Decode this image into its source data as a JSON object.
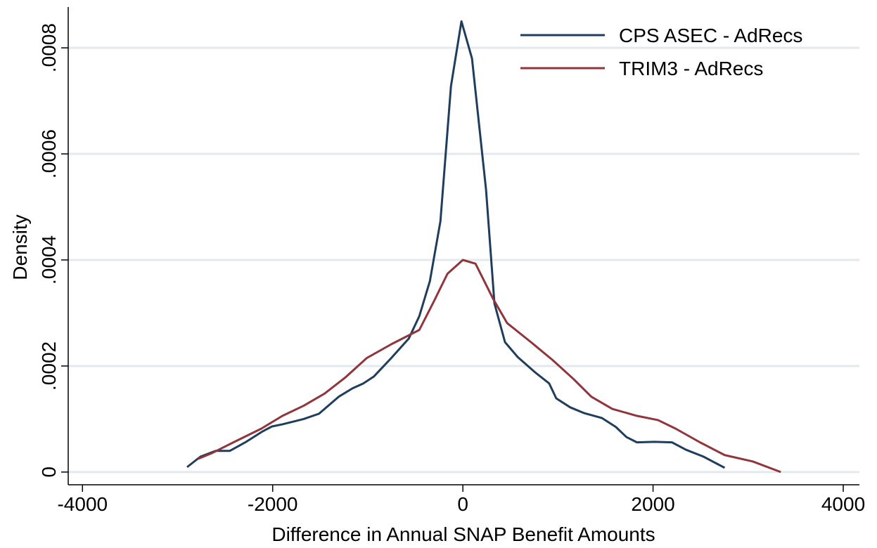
{
  "chart_data": {
    "type": "line",
    "x_label": "Difference in Annual SNAP Benefit Amounts",
    "y_label": "Density",
    "xlim": [
      -4150,
      4170
    ],
    "ylim": [
      -2.4e-05,
      0.000877
    ],
    "xticks": [
      -4000,
      -2000,
      0,
      2000,
      4000
    ],
    "yticks": [
      0,
      {
        "value": 0.0002,
        "label": ".0002"
      },
      {
        "value": 0.0004,
        "label": ".0004"
      },
      {
        "value": 0.0006,
        "label": ".0006"
      },
      {
        "value": 0.0008,
        "label": ".0008"
      }
    ],
    "grid": true,
    "legend": "top right",
    "series": [
      {
        "name": "CPS ASEC - AdRecs",
        "color": "#1f3d5c",
        "x": [
          -2900,
          -2760,
          -2598,
          -2450,
          -2288,
          -2103,
          -2007,
          -1897,
          -1675,
          -1513,
          -1306,
          -1159,
          -1048,
          -937,
          -753,
          -568,
          -458,
          -347,
          -236,
          -125,
          -15,
          96,
          244,
          332,
          443,
          576,
          760,
          908,
          982,
          1129,
          1277,
          1461,
          1609,
          1720,
          1830,
          2015,
          2199,
          2347,
          2531,
          2753
        ],
        "values": [
          9.3e-06,
          2.9e-05,
          4e-05,
          4e-05,
          5.6e-05,
          7.7e-05,
          8.6e-05,
          9e-05,
          0.0001,
          0.00011,
          0.000142,
          0.000158,
          0.000167,
          0.00018,
          0.000215,
          0.000252,
          0.000294,
          0.00036,
          0.000473,
          0.000728,
          0.00085,
          0.00078,
          0.000532,
          0.000318,
          0.000245,
          0.000217,
          0.000188,
          0.000167,
          0.000139,
          0.000122,
          0.000111,
          0.000102,
          8.5e-05,
          6.6e-05,
          5.6e-05,
          5.7e-05,
          5.6e-05,
          4.2e-05,
          2.9e-05,
          8e-06
        ]
      },
      {
        "name": "TRIM3 - AdRecs",
        "color": "#90353b",
        "x": [
          -2782,
          -2635,
          -2413,
          -2118,
          -1897,
          -1675,
          -1454,
          -1232,
          -1011,
          -753,
          -458,
          -310,
          -162,
          0,
          133,
          317,
          465,
          723,
          945,
          1166,
          1351,
          1572,
          1830,
          2052,
          2236,
          2494,
          2753,
          3048,
          3343
        ],
        "values": [
          2.5e-05,
          3.6e-05,
          5.6e-05,
          8.2e-05,
          0.000106,
          0.000125,
          0.000148,
          0.000179,
          0.000215,
          0.000241,
          0.000268,
          0.00032,
          0.000374,
          0.0004,
          0.000393,
          0.000327,
          0.000281,
          0.000244,
          0.000211,
          0.000175,
          0.000142,
          0.000119,
          0.000106,
          9.8e-05,
          8.2e-05,
          5.6e-05,
          3.2e-05,
          2e-05,
          0.0
        ]
      }
    ]
  }
}
